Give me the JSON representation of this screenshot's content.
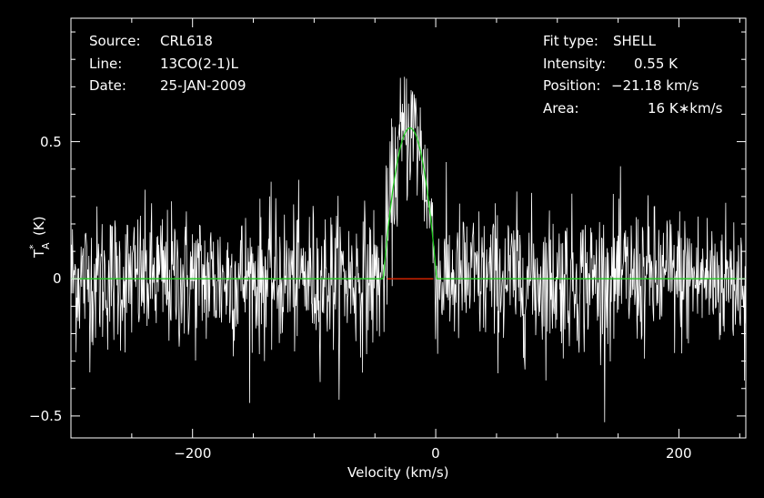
{
  "header_left": {
    "source_label": "Source:",
    "source_value": "CRL618",
    "line_label": "Line:",
    "line_value": "13CO(2-1)L",
    "date_label": "Date:",
    "date_value": "25-JAN-2009"
  },
  "header_right": {
    "fit_label": "Fit type:",
    "fit_value": "SHELL",
    "intensity_label": "Intensity:",
    "intensity_value": "0.55 K",
    "position_label": "Position:",
    "position_value": "−21.18 km/s",
    "area_label": "Area:",
    "area_value": "16 K∗km/s"
  },
  "colors": {
    "background": "#000000",
    "spectrum": "#ffffff",
    "fit": "#22cc22",
    "baseline_window": "#cc2200"
  },
  "chart_data": {
    "type": "line",
    "title": "",
    "xlabel": "Velocity (km/s)",
    "ylabel": "T_A^* (K)",
    "ylabel_parts": {
      "main": "T",
      "sup": "*",
      "sub": "A",
      "unit": "(K)"
    },
    "xlim": [
      -300,
      255
    ],
    "ylim": [
      -0.58,
      0.95
    ],
    "x_ticks": [
      -200,
      0,
      200
    ],
    "x_tick_labels": [
      "−200",
      "0",
      "200"
    ],
    "y_ticks": [
      -0.5,
      0,
      0.5
    ],
    "y_tick_labels": [
      "−0.5",
      "0",
      "0.5"
    ],
    "grid": false,
    "series": [
      {
        "kind": "noise_spectrum",
        "rms": 0.13,
        "line_center": -21.18,
        "line_peak": 0.55,
        "line_halfwidth": 22
      },
      {
        "kind": "shell_fit",
        "center": -21.18,
        "peak": 0.55,
        "halfwidth": 22
      },
      {
        "kind": "baseline_window",
        "x": [
          -40,
          -2
        ],
        "y": 0
      }
    ]
  }
}
